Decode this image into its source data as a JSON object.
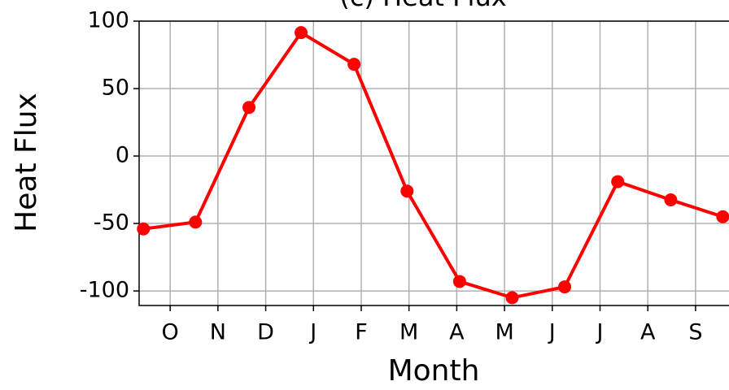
{
  "chart_data": {
    "type": "line",
    "title": "(c) Heat Flux",
    "xlabel": "Month",
    "ylabel": "Heat Flux",
    "x": [
      -0.56,
      0.53,
      1.65,
      2.74,
      3.85,
      4.96,
      6.06,
      7.16,
      8.26,
      9.37,
      10.48,
      11.57
    ],
    "series": [
      {
        "name": "Heat Flux",
        "color": "#ff0000",
        "values": [
          -54,
          -49,
          36,
          91.5,
          68,
          -26,
          -93,
          -105,
          -97,
          -19,
          -32.5,
          -45
        ]
      }
    ],
    "xlim": [
      -0.65,
      11.7
    ],
    "xticks": [
      {
        "value": 0,
        "label": "O"
      },
      {
        "value": 1,
        "label": "N"
      },
      {
        "value": 2,
        "label": "D"
      },
      {
        "value": 3,
        "label": "J"
      },
      {
        "value": 4,
        "label": "F"
      },
      {
        "value": 5,
        "label": "M"
      },
      {
        "value": 6,
        "label": "A"
      },
      {
        "value": 7,
        "label": "M"
      },
      {
        "value": 8,
        "label": "J"
      },
      {
        "value": 9,
        "label": "J"
      },
      {
        "value": 10,
        "label": "A"
      },
      {
        "value": 11,
        "label": "S"
      }
    ],
    "ylim": [
      -110.8,
      100
    ],
    "yticks": [
      -100,
      -50,
      0,
      50,
      100
    ],
    "grid": true
  }
}
